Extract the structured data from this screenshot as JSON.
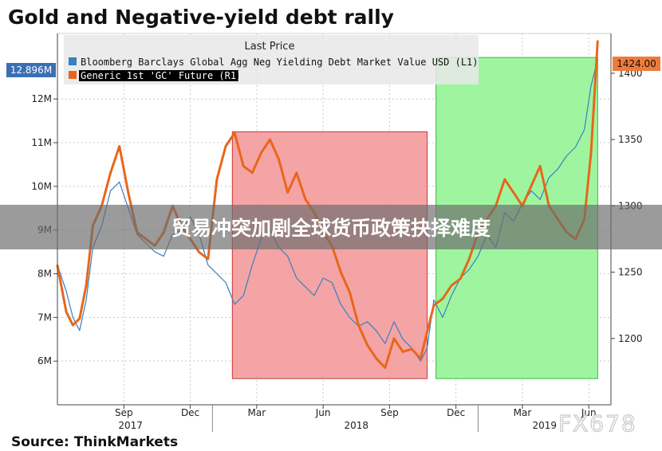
{
  "title": "Gold and Negative-yield debt rally",
  "source": "Source: ThinkMarkets",
  "banner": "贸易冲突加剧全球货币政策抉择难度",
  "watermark": "FX678",
  "colors": {
    "debt_series": "#3a7fc1",
    "gold_series": "#e8661c",
    "red_zone": "#f39a9a",
    "green_zone": "#95f495",
    "debt_badge": "#3a6fb5",
    "gold_badge": "#f07a3a"
  },
  "chart_data": {
    "type": "line",
    "legend": {
      "header": "Last Price",
      "placement": "top-left",
      "entries": [
        "Bloomberg Barclays Global Agg Neg Yielding Debt Market Value USD  (L1)",
        "Generic 1st 'GC' Future  (R1)"
      ]
    },
    "x_ticks": [
      "Sep",
      "Dec",
      "Mar",
      "Jun",
      "Sep",
      "Dec",
      "Mar",
      "Jun"
    ],
    "x_ticks_t": [
      2.0,
      5.0,
      8.0,
      11.0,
      14.0,
      17.0,
      20.0,
      23.0
    ],
    "x_year_labels": [
      "2017",
      "2018",
      "2019"
    ],
    "x_year_t": [
      2.3,
      12.5,
      21.0
    ],
    "x_range": [
      -1.0,
      24.0
    ],
    "y_left": {
      "ticks": [
        "6M",
        "7M",
        "8M",
        "9M",
        "10M",
        "11M",
        "12M"
      ],
      "values": [
        6,
        7,
        8,
        9,
        10,
        11,
        12
      ],
      "range": [
        5.0,
        13.5
      ],
      "unit": "M"
    },
    "y_right": {
      "ticks": [
        "1200",
        "1250",
        "1300",
        "1350",
        "1400"
      ],
      "values": [
        1200,
        1250,
        1300,
        1350,
        1400
      ],
      "range": [
        1150,
        1430
      ]
    },
    "last_values": {
      "debt": "12.896M",
      "gold": "1424.00"
    },
    "shaded_regions": [
      {
        "label": "red",
        "t_start": 6.9,
        "t_end": 15.7,
        "y_low": 5.6,
        "y_high": 11.25,
        "axis": "left"
      },
      {
        "label": "green",
        "t_start": 16.1,
        "t_end": 23.4,
        "y_low": 5.6,
        "y_high": 12.95,
        "axis": "left"
      }
    ],
    "series": [
      {
        "name": "Bloomberg Barclays Global Agg Neg Yielding Debt Market Value USD  (L1)",
        "axis": "left",
        "t": [
          -1.0,
          -0.6,
          -0.3,
          0.0,
          0.3,
          0.6,
          1.0,
          1.4,
          1.8,
          2.2,
          2.6,
          3.0,
          3.4,
          3.8,
          4.2,
          4.6,
          5.0,
          5.4,
          5.8,
          6.2,
          6.6,
          7.0,
          7.4,
          7.8,
          8.2,
          8.6,
          9.0,
          9.4,
          9.8,
          10.2,
          10.6,
          11.0,
          11.4,
          11.8,
          12.2,
          12.6,
          13.0,
          13.4,
          13.8,
          14.2,
          14.6,
          15.0,
          15.4,
          15.7,
          16.0,
          16.4,
          16.8,
          17.2,
          17.6,
          18.0,
          18.4,
          18.8,
          19.2,
          19.6,
          20.0,
          20.4,
          20.8,
          21.2,
          21.6,
          22.0,
          22.4,
          22.8,
          23.1,
          23.4
        ],
        "values": [
          8.2,
          7.6,
          7.0,
          6.7,
          7.4,
          8.6,
          9.1,
          9.9,
          10.1,
          9.5,
          8.9,
          8.7,
          8.5,
          8.4,
          8.9,
          9.0,
          9.3,
          8.9,
          8.2,
          8.0,
          7.8,
          7.3,
          7.5,
          8.2,
          8.8,
          9.0,
          8.6,
          8.4,
          7.9,
          7.7,
          7.5,
          7.9,
          7.8,
          7.3,
          7.0,
          6.8,
          6.9,
          6.7,
          6.4,
          6.9,
          6.5,
          6.3,
          6.0,
          6.3,
          7.4,
          7.0,
          7.5,
          7.9,
          8.1,
          8.4,
          8.9,
          8.6,
          9.4,
          9.2,
          9.6,
          9.9,
          9.7,
          10.2,
          10.4,
          10.7,
          10.9,
          11.3,
          12.3,
          12.9
        ]
      },
      {
        "name": "Generic 1st 'GC' Future  (R1)",
        "axis": "right",
        "t": [
          -1.0,
          -0.6,
          -0.3,
          0.0,
          0.3,
          0.6,
          1.0,
          1.4,
          1.8,
          2.2,
          2.6,
          3.0,
          3.4,
          3.8,
          4.2,
          4.6,
          5.0,
          5.4,
          5.8,
          6.2,
          6.6,
          7.0,
          7.4,
          7.8,
          8.2,
          8.6,
          9.0,
          9.4,
          9.8,
          10.2,
          10.6,
          11.0,
          11.4,
          11.8,
          12.2,
          12.6,
          13.0,
          13.4,
          13.8,
          14.2,
          14.6,
          15.0,
          15.4,
          15.7,
          16.0,
          16.4,
          16.8,
          17.2,
          17.6,
          18.0,
          18.4,
          18.8,
          19.2,
          19.6,
          20.0,
          20.4,
          20.8,
          21.2,
          21.6,
          22.0,
          22.4,
          22.8,
          23.1,
          23.4
        ],
        "values": [
          1255,
          1220,
          1210,
          1215,
          1240,
          1285,
          1300,
          1325,
          1345,
          1310,
          1280,
          1275,
          1270,
          1280,
          1300,
          1285,
          1275,
          1265,
          1260,
          1320,
          1345,
          1355,
          1330,
          1325,
          1340,
          1350,
          1335,
          1310,
          1325,
          1305,
          1295,
          1280,
          1270,
          1250,
          1235,
          1210,
          1195,
          1185,
          1178,
          1200,
          1190,
          1192,
          1185,
          1205,
          1225,
          1230,
          1240,
          1245,
          1260,
          1280,
          1290,
          1300,
          1320,
          1310,
          1300,
          1315,
          1330,
          1300,
          1290,
          1280,
          1275,
          1290,
          1340,
          1424
        ]
      }
    ]
  }
}
